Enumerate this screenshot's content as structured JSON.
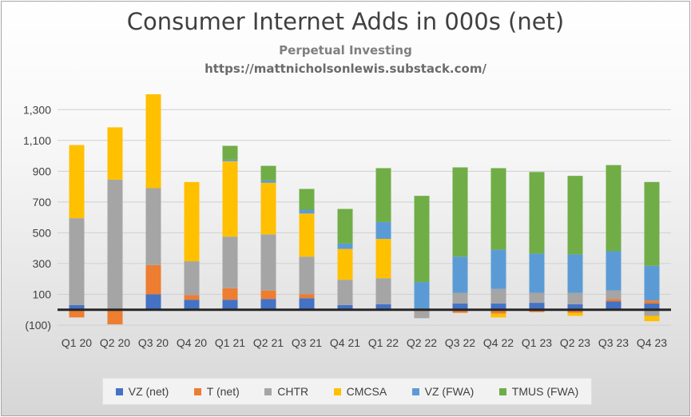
{
  "chart_data": {
    "type": "bar",
    "stacked": true,
    "title": "Consumer Internet Adds in 000s (net)",
    "subtitle": "Perpetual Investing",
    "source_url": "https://mattnicholsonlewis.substack.com/",
    "categories": [
      "Q1 20",
      "Q2 20",
      "Q3 20",
      "Q4 20",
      "Q1 21",
      "Q2 21",
      "Q3 21",
      "Q4 21",
      "Q1 22",
      "Q2 22",
      "Q3 22",
      "Q4 22",
      "Q1 23",
      "Q2 23",
      "Q3 23",
      "Q4 23"
    ],
    "ylim": [
      -100,
      1400
    ],
    "yticks": [
      -100,
      100,
      300,
      500,
      700,
      900,
      1100,
      1300
    ],
    "ytick_labels": [
      "(100)",
      "100",
      "300",
      "500",
      "700",
      "900",
      "1,100",
      "1,300"
    ],
    "grid": true,
    "legend_position": "bottom",
    "series": [
      {
        "name": "VZ (net)",
        "color": "#4472c4",
        "values": [
          30,
          -5,
          100,
          65,
          65,
          70,
          75,
          30,
          35,
          5,
          40,
          40,
          45,
          35,
          55,
          40
        ]
      },
      {
        "name": "T (net)",
        "color": "#ed7d31",
        "values": [
          -50,
          -90,
          190,
          30,
          75,
          55,
          25,
          0,
          0,
          -10,
          -20,
          -25,
          -15,
          -20,
          15,
          20
        ]
      },
      {
        "name": "CHTR",
        "color": "#a5a5a5",
        "values": [
          565,
          845,
          500,
          220,
          335,
          365,
          245,
          165,
          170,
          -45,
          70,
          95,
          65,
          75,
          55,
          -40
        ]
      },
      {
        "name": "CMCSA",
        "color": "#ffc000",
        "values": [
          475,
          340,
          610,
          515,
          490,
          335,
          280,
          200,
          255,
          0,
          0,
          -25,
          0,
          -20,
          0,
          -35
        ]
      },
      {
        "name": "VZ (FWA)",
        "color": "#5b9bd5",
        "values": [
          0,
          0,
          0,
          0,
          10,
          15,
          25,
          35,
          110,
          175,
          235,
          255,
          255,
          250,
          255,
          225
        ]
      },
      {
        "name": "TMUS (FWA)",
        "color": "#70ad47",
        "values": [
          0,
          0,
          0,
          0,
          90,
          95,
          135,
          225,
          350,
          560,
          580,
          530,
          530,
          510,
          560,
          545
        ]
      }
    ]
  }
}
